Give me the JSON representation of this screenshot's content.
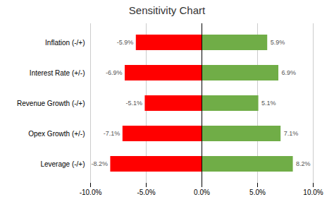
{
  "chart_data": {
    "type": "bar",
    "orientation": "horizontal",
    "title": "Sensitivity Chart",
    "categories": [
      "Inflation (-/+)",
      "Interest Rate (+/-)",
      "Revenue Growth (-/+)",
      "Opex Growth (+/-)",
      "Leverage (-/+)"
    ],
    "series": [
      {
        "color": "#FF0000",
        "values": [
          -5.9,
          -6.9,
          -5.1,
          -7.1,
          -8.2
        ],
        "value_labels": [
          "-5.9%",
          "-6.9%",
          "-5.1%",
          "-7.1%",
          "-8.2%"
        ]
      },
      {
        "color": "#70AD47",
        "values": [
          5.9,
          6.9,
          5.1,
          7.1,
          8.2
        ],
        "value_labels": [
          "5.9%",
          "6.9%",
          "5.1%",
          "7.1%",
          "8.2%"
        ]
      }
    ],
    "xlim": [
      -10.0,
      10.0
    ],
    "xticks": [
      {
        "value": -10.0,
        "label": "-10.0%"
      },
      {
        "value": -5.0,
        "label": "-5.0%"
      },
      {
        "value": 0.0,
        "label": "0.0%"
      },
      {
        "value": 5.0,
        "label": "5.0%"
      },
      {
        "value": 10.0,
        "label": "10.0%"
      }
    ],
    "grid": true,
    "data_labels": true
  }
}
